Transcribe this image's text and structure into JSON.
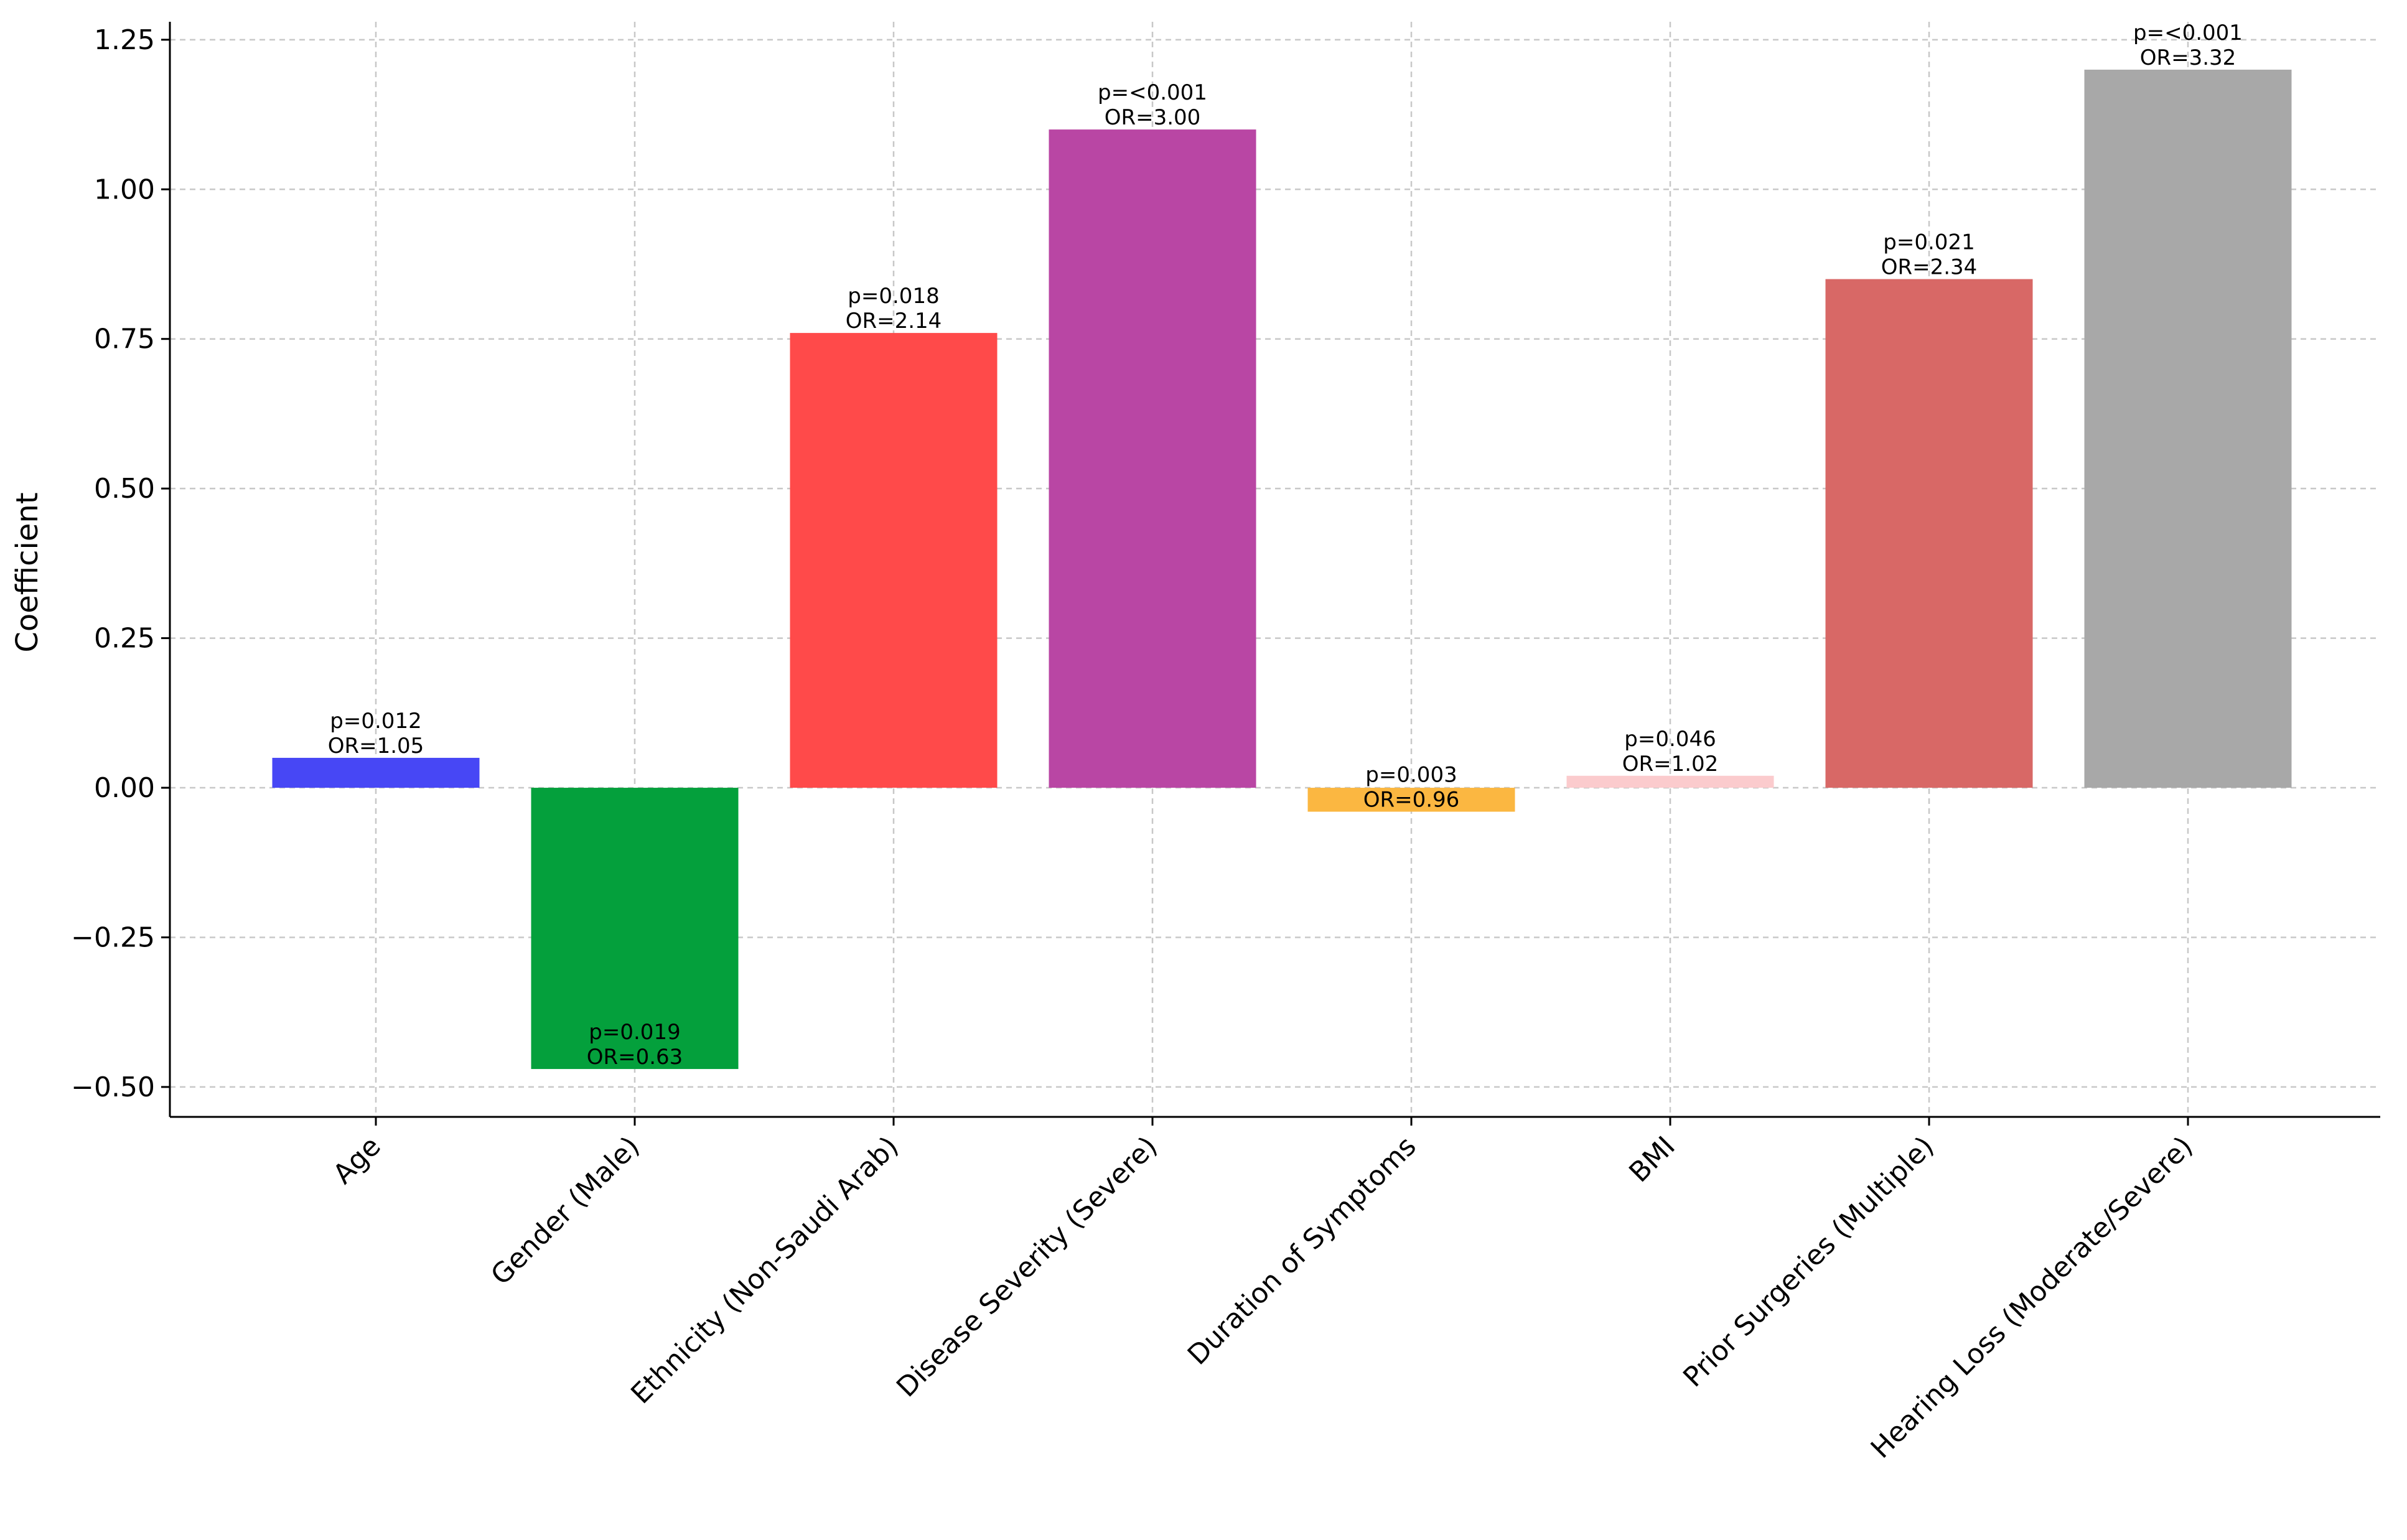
{
  "chart_data": {
    "type": "bar",
    "title": "",
    "xlabel": "",
    "ylabel": "Coefficient",
    "ylim": [
      -0.55,
      1.28
    ],
    "grid": true,
    "yticks": [
      -0.5,
      -0.25,
      0.0,
      0.25,
      0.5,
      0.75,
      1.0,
      1.25
    ],
    "ytick_labels": [
      "−0.50",
      "−0.25",
      "0.00",
      "0.25",
      "0.50",
      "0.75",
      "1.00",
      "1.25"
    ],
    "categories": [
      "Age",
      "Gender (Male)",
      "Ethnicity (Non-Saudi Arab)",
      "Disease Severity (Severe)",
      "Duration of Symptoms",
      "BMI",
      "Prior Surgeries (Multiple)",
      "Hearing Loss (Moderate/Severe)"
    ],
    "values": [
      0.05,
      -0.47,
      0.76,
      1.1,
      -0.04,
      0.02,
      0.85,
      1.2
    ],
    "colors": [
      "#4747f5",
      "#04a03c",
      "#ff4a4a",
      "#b946a4",
      "#fbb741",
      "#fbcbcd",
      "#d86866",
      "#a8a8a8"
    ],
    "p_labels": [
      "p=0.012",
      "p=0.019",
      "p=0.018",
      "p=<0.001",
      "p=0.003",
      "p=0.046",
      "p=0.021",
      "p=<0.001"
    ],
    "or_labels": [
      "OR=1.05",
      "OR=0.63",
      "OR=2.14",
      "OR=3.00",
      "OR=0.96",
      "OR=1.02",
      "OR=2.34",
      "OR=3.32"
    ]
  }
}
